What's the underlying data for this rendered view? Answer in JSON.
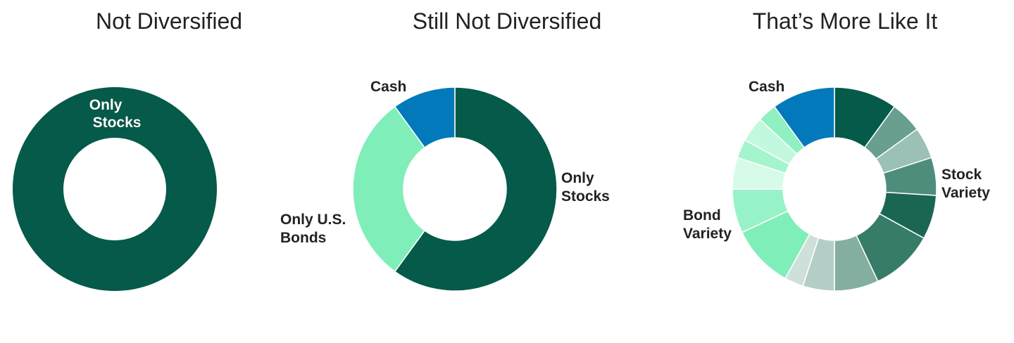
{
  "chart_data": [
    {
      "type": "pie",
      "title": "Not Diversified",
      "slices": [
        {
          "label": "Only Stocks",
          "value": 100,
          "color": "#055a49"
        }
      ]
    },
    {
      "type": "pie",
      "title": "Still Not Diversified",
      "slices": [
        {
          "label": "Only Stocks",
          "value": 60,
          "color": "#055a49"
        },
        {
          "label": "Only U.S. Bonds",
          "value": 30,
          "color": "#80eeb9"
        },
        {
          "label": "Cash",
          "value": 10,
          "color": "#0279bb"
        }
      ]
    },
    {
      "type": "pie",
      "title": "That’s More Like It",
      "slices": [
        {
          "label": "",
          "value": 10,
          "color": "#055a49"
        },
        {
          "label": "",
          "value": 5,
          "color": "#689f8f"
        },
        {
          "label": "",
          "value": 5,
          "color": "#9bc0b6"
        },
        {
          "label": "",
          "value": 6,
          "color": "#4e8d7c"
        },
        {
          "label": "",
          "value": 7,
          "color": "#1b6652"
        },
        {
          "label": "",
          "value": 10,
          "color": "#367c68"
        },
        {
          "label": "",
          "value": 7,
          "color": "#84ae9f"
        },
        {
          "label": "",
          "value": 5,
          "color": "#b3cec7"
        },
        {
          "label": "",
          "value": 3,
          "color": "#cfe0db"
        },
        {
          "label": "",
          "value": 10,
          "color": "#80eeb9"
        },
        {
          "label": "",
          "value": 7,
          "color": "#98f2c7"
        },
        {
          "label": "",
          "value": 5,
          "color": "#d6fbe9"
        },
        {
          "label": "",
          "value": 3,
          "color": "#a4f4cd"
        },
        {
          "label": "",
          "value": 4,
          "color": "#c2f8de"
        },
        {
          "label": "",
          "value": 3,
          "color": "#8ff0c1"
        },
        {
          "label": "Cash",
          "value": 10,
          "color": "#0279bb"
        }
      ],
      "group_labels": [
        "Stock Variety",
        "Bond Variety",
        "Cash"
      ]
    }
  ]
}
